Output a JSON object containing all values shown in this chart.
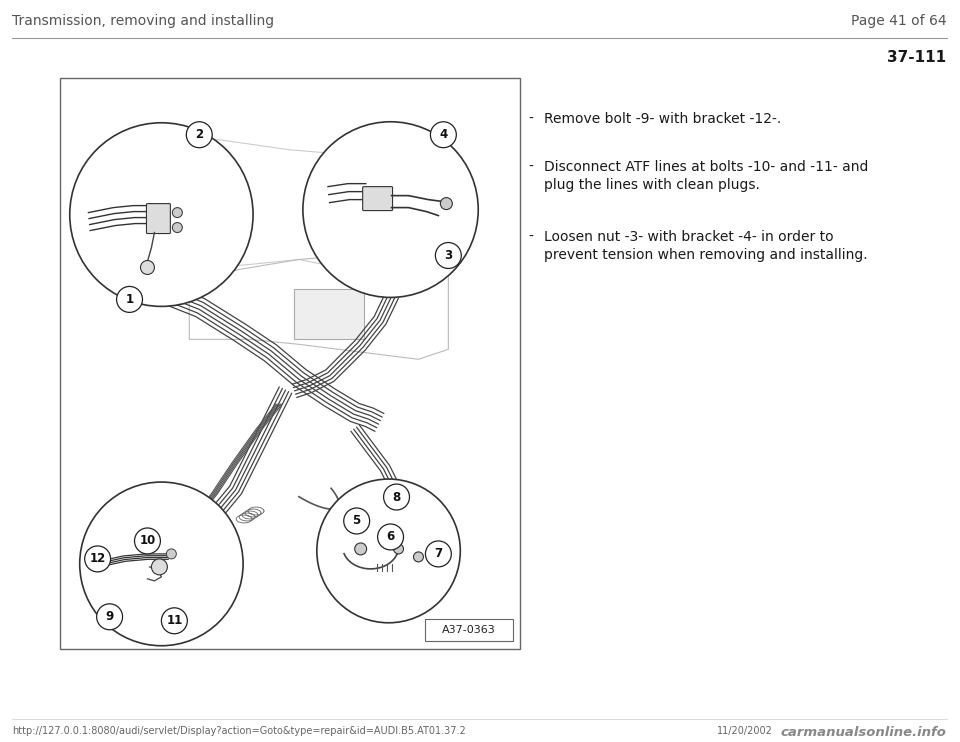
{
  "page_title": "Transmission, removing and installing",
  "page_number": "Page 41 of 64",
  "section_number": "37-111",
  "instructions": [
    "Remove bolt -9- with bracket -12-.",
    "Disconnect ATF lines at bolts -10- and -11- and\nplug the lines with clean plugs.",
    "Loosen nut -3- with bracket -4- in order to\nprevent tension when removing and installing."
  ],
  "diagram_label": "A37-0363",
  "footer_url": "http://127.0.0.1:8080/audi/servlet/Display?action=Goto&type=repair&id=AUDI.B5.AT01.37.2",
  "footer_date": "11/20/2002",
  "footer_watermark": "carmanualsonline.info",
  "bg_color": "#ffffff",
  "text_color": "#1a1a1a",
  "diagram_bg": "#ffffff",
  "border_color": "#555555",
  "line_color_top": "#555555",
  "diagram_line_color": "#333333",
  "header_text_color": "#555555"
}
